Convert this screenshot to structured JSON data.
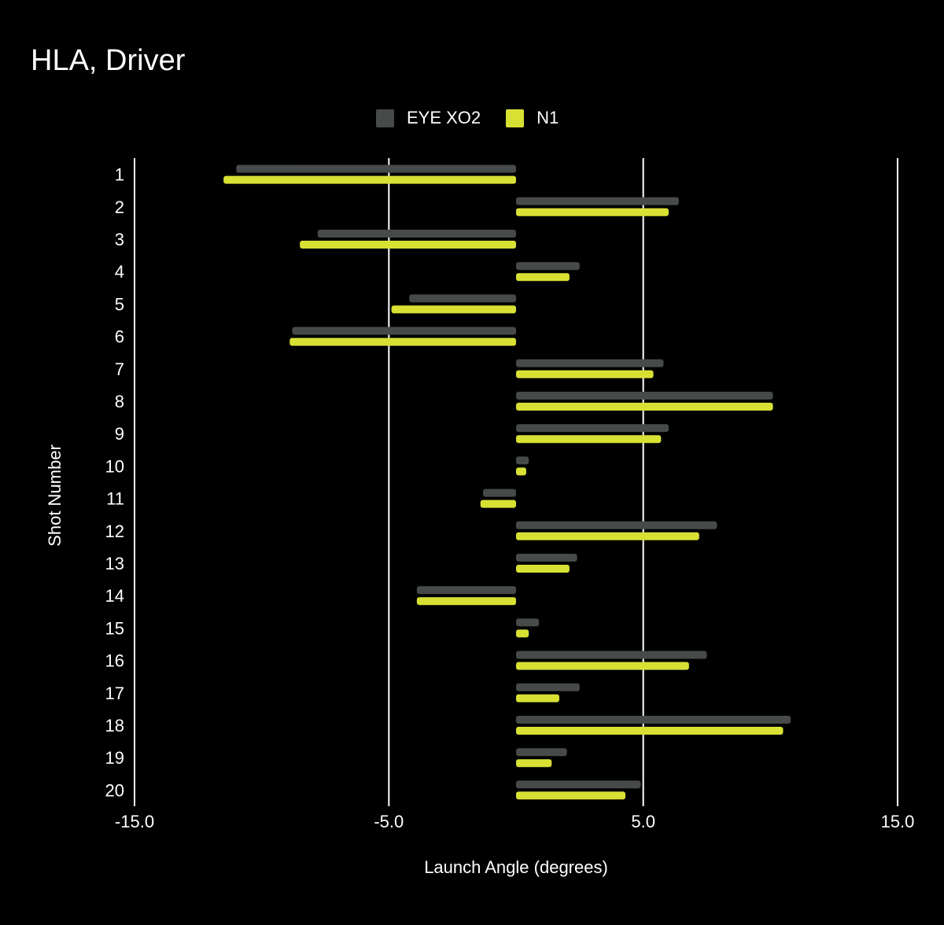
{
  "chart_data": {
    "type": "bar",
    "orientation": "horizontal",
    "title": "HLA, Driver",
    "xlabel": "Launch Angle (degrees)",
    "ylabel": "Shot Number",
    "xlim": [
      -15,
      15
    ],
    "xticks": [
      "-15.0",
      "-5.0",
      "5.0",
      "15.0"
    ],
    "xtick_values": [
      -15,
      -5,
      5,
      15
    ],
    "grid": true,
    "legend_position": "top-center",
    "categories": [
      "1",
      "2",
      "3",
      "4",
      "5",
      "6",
      "7",
      "8",
      "9",
      "10",
      "11",
      "12",
      "13",
      "14",
      "15",
      "16",
      "17",
      "18",
      "19",
      "20"
    ],
    "series": [
      {
        "name": "EYE XO2",
        "color": "#464a49",
        "values": [
          -11.0,
          6.4,
          -7.8,
          2.5,
          -4.2,
          -8.8,
          5.8,
          10.1,
          6.0,
          0.5,
          -1.3,
          7.9,
          2.4,
          -3.9,
          0.9,
          7.5,
          2.5,
          10.8,
          2.0,
          4.9
        ]
      },
      {
        "name": "N1",
        "color": "#d8e034",
        "values": [
          -11.5,
          6.0,
          -8.5,
          2.1,
          -4.9,
          -8.9,
          5.4,
          10.1,
          5.7,
          0.4,
          -1.4,
          7.2,
          2.1,
          -3.9,
          0.5,
          6.8,
          1.7,
          10.5,
          1.4,
          4.3
        ]
      }
    ]
  }
}
